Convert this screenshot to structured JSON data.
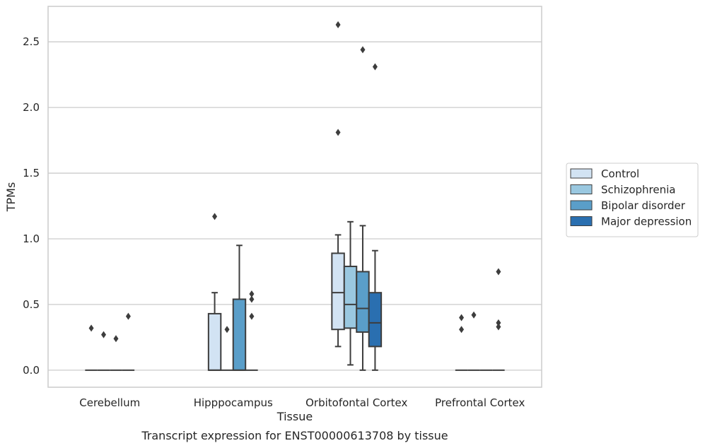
{
  "caption": "Transcript expression for ENST00000613708 by tissue",
  "chart_data": {
    "type": "box",
    "title": "",
    "xlabel": "Tissue",
    "ylabel": "TPMs",
    "ylim": [
      -0.13,
      2.77
    ],
    "yticks": [
      0.0,
      0.5,
      1.0,
      1.5,
      2.0,
      2.5
    ],
    "ytick_labels": [
      "0.0",
      "0.5",
      "1.0",
      "1.5",
      "2.0",
      "2.5"
    ],
    "grid": "horizontal",
    "legend_position": "right, outside plot",
    "categories": [
      "Cerebellum",
      "Hipppocampus",
      "Orbitofontal Cortex",
      "Prefrontal Cortex"
    ],
    "series": [
      {
        "name": "Control",
        "color": "#d2e3f3",
        "boxes": [
          {
            "category": "Cerebellum",
            "q1": 0,
            "median": 0,
            "q3": 0,
            "whisker_low": 0,
            "whisker_high": 0,
            "outliers": [
              0.32
            ]
          },
          {
            "category": "Hipppocampus",
            "q1": 0,
            "median": 0,
            "q3": 0.43,
            "whisker_low": 0,
            "whisker_high": 0.59,
            "outliers": [
              1.17
            ]
          },
          {
            "category": "Orbitofontal Cortex",
            "q1": 0.31,
            "median": 0.59,
            "q3": 0.89,
            "whisker_low": 0.18,
            "whisker_high": 1.03,
            "outliers": [
              2.63,
              1.81
            ]
          },
          {
            "category": "Prefrontal Cortex",
            "q1": 0,
            "median": 0,
            "q3": 0,
            "whisker_low": 0,
            "whisker_high": 0,
            "outliers": [
              0.4,
              0.31
            ]
          }
        ]
      },
      {
        "name": "Schizophrenia",
        "color": "#9ac8e0",
        "boxes": [
          {
            "category": "Cerebellum",
            "q1": 0,
            "median": 0,
            "q3": 0,
            "whisker_low": 0,
            "whisker_high": 0,
            "outliers": [
              0.27
            ]
          },
          {
            "category": "Hipppocampus",
            "q1": 0,
            "median": 0,
            "q3": 0,
            "whisker_low": 0,
            "whisker_high": 0,
            "outliers": [
              0.31
            ]
          },
          {
            "category": "Orbitofontal Cortex",
            "q1": 0.32,
            "median": 0.5,
            "q3": 0.79,
            "whisker_low": 0.04,
            "whisker_high": 1.13,
            "outliers": []
          },
          {
            "category": "Prefrontal Cortex",
            "q1": 0,
            "median": 0,
            "q3": 0,
            "whisker_low": 0,
            "whisker_high": 0,
            "outliers": [
              0.42
            ]
          }
        ]
      },
      {
        "name": "Bipolar disorder",
        "color": "#5a9ec9",
        "boxes": [
          {
            "category": "Cerebellum",
            "q1": 0,
            "median": 0,
            "q3": 0,
            "whisker_low": 0,
            "whisker_high": 0,
            "outliers": [
              0.24
            ]
          },
          {
            "category": "Hipppocampus",
            "q1": 0,
            "median": 0,
            "q3": 0.54,
            "whisker_low": 0,
            "whisker_high": 0.95,
            "outliers": []
          },
          {
            "category": "Orbitofontal Cortex",
            "q1": 0.29,
            "median": 0.47,
            "q3": 0.75,
            "whisker_low": 0,
            "whisker_high": 1.1,
            "outliers": [
              2.44
            ]
          },
          {
            "category": "Prefrontal Cortex",
            "q1": 0,
            "median": 0,
            "q3": 0,
            "whisker_low": 0,
            "whisker_high": 0,
            "outliers": []
          }
        ]
      },
      {
        "name": "Major depression",
        "color": "#2a6fb0",
        "boxes": [
          {
            "category": "Cerebellum",
            "q1": 0,
            "median": 0,
            "q3": 0,
            "whisker_low": 0,
            "whisker_high": 0,
            "outliers": [
              0.41
            ]
          },
          {
            "category": "Hipppocampus",
            "q1": 0,
            "median": 0,
            "q3": 0,
            "whisker_low": 0,
            "whisker_high": 0,
            "outliers": [
              0.58,
              0.54,
              0.41
            ]
          },
          {
            "category": "Orbitofontal Cortex",
            "q1": 0.18,
            "median": 0.36,
            "q3": 0.59,
            "whisker_low": 0,
            "whisker_high": 0.91,
            "outliers": [
              2.31
            ]
          },
          {
            "category": "Prefrontal Cortex",
            "q1": 0,
            "median": 0,
            "q3": 0,
            "whisker_low": 0,
            "whisker_high": 0,
            "outliers": [
              0.75,
              0.36,
              0.33
            ]
          }
        ]
      }
    ]
  }
}
